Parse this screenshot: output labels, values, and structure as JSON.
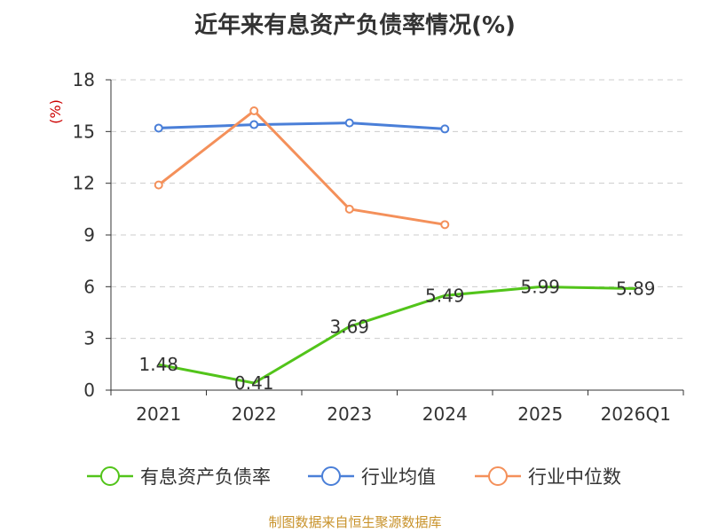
{
  "title": "近年来有息资产负债率情况(%)",
  "footer": "制图数据来自恒生聚源数据库",
  "colors": {
    "debt_ratio": "#52c41a",
    "industry_avg": "#4a7fd8",
    "industry_median": "#f4905a",
    "ylabel": "#cc0000",
    "grid": "#cccccc",
    "axis": "#333333",
    "footer": "#c8922a"
  },
  "chart_data": {
    "type": "line",
    "title": "近年来有息资产负债率情况(%)",
    "xlabel": "",
    "ylabel": "(%)",
    "categories": [
      "2021",
      "2022",
      "2023",
      "2024",
      "2025",
      "2026Q1"
    ],
    "ylim": [
      0,
      18
    ],
    "yticks": [
      "0",
      "3",
      "6",
      "9",
      "12",
      "15",
      "18"
    ],
    "grid": true,
    "legend_position": "bottom",
    "series": [
      {
        "name": "有息资产负债率",
        "color": "#52c41a",
        "marker": false,
        "values": [
          1.48,
          0.41,
          3.69,
          5.49,
          5.99,
          5.89
        ],
        "labels": [
          "1.48",
          "0.41",
          "3.69",
          "5.49",
          "5.99",
          "5.89"
        ]
      },
      {
        "name": "行业均值",
        "color": "#4a7fd8",
        "marker": true,
        "values": [
          15.2,
          15.4,
          15.5,
          15.15,
          null,
          null
        ]
      },
      {
        "name": "行业中位数",
        "color": "#f4905a",
        "marker": true,
        "values": [
          11.9,
          16.2,
          10.5,
          9.6,
          null,
          null
        ]
      }
    ]
  }
}
